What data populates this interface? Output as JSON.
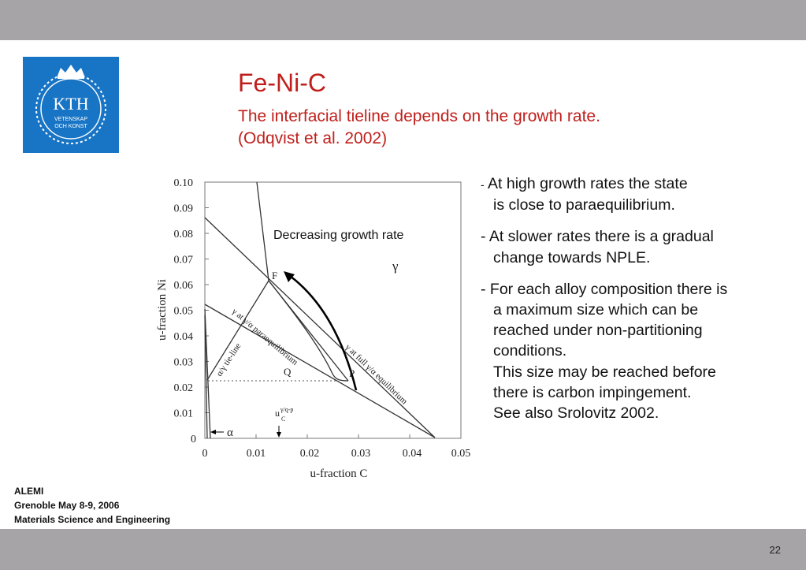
{
  "slide": {
    "page_number": "22"
  },
  "logo": {
    "name": "kth-crown-logo",
    "text_main": "KTH",
    "text_line1": "VETENSKAP",
    "text_line2": "OCH KONST"
  },
  "title": "Fe-Ni-C",
  "subtitle_line1": "The interfacial tieline depends on the growth rate.",
  "subtitle_line2": "(Odqvist et al. 2002)",
  "figure": {
    "ylabel": "u-fraction Ni",
    "xlabel": "u-fraction C",
    "yticks": [
      "0.10",
      "0.09",
      "0.08",
      "0.07",
      "0.06",
      "0.05",
      "0.04",
      "0.03",
      "0.02",
      "0.01",
      "0"
    ],
    "xticks": [
      "0",
      "0.01",
      "0.02",
      "0.03",
      "0.04",
      "0.05"
    ],
    "gamma": "γ",
    "annotation": "Decreasing growth rate",
    "label_F": "F",
    "label_P": "P",
    "label_Q": "Q",
    "alpha": "α",
    "uc_label": "u",
    "uc_sub": "C",
    "uc_sup": "γ/q-p",
    "line_label_para": "γ at γ/α paraequilibrium",
    "line_label_full": "γ at full γ/α equilibrium",
    "line_label_tie": "α/γ tie-line"
  },
  "bullets": {
    "b1_dash": "-",
    "b1_l1": "At high growth rates the state",
    "b1_l2": "is close to paraequilibrium.",
    "b2_l1": "- At slower rates there is a gradual",
    "b2_l2": "change towards NPLE.",
    "b3_l1": "- For each alloy composition there is",
    "b3_l2": "a maximum size which can be",
    "b3_l3": "reached under non-partitioning",
    "b3_l4": "conditions.",
    "b3_l5": "This size may be  reached before",
    "b3_l6": "there is carbon impingement.",
    "b3_l7": "See also   Srolovitz 2002."
  },
  "footer": {
    "line1": "ALEMI",
    "line2": "Grenoble May 8-9, 2006",
    "line3": "Materials Science and Engineering"
  }
}
